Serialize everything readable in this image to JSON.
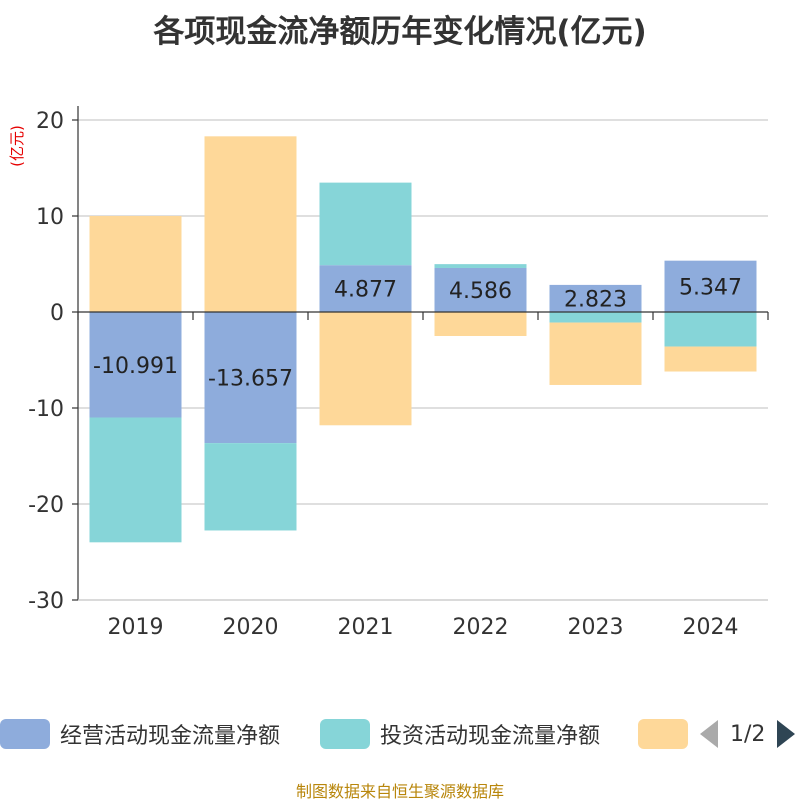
{
  "title": "各项现金流净额历年变化情况(亿元)",
  "source": "制图数据来自恒生聚源数据库",
  "pager": {
    "text": "1/2"
  },
  "colors": {
    "operating": "#8eacdc",
    "investing": "#86d5d8",
    "financing": "#fed899"
  },
  "chart_data": {
    "type": "bar",
    "stacked": true,
    "unit": "(亿元)",
    "categories": [
      "2019",
      "2020",
      "2021",
      "2022",
      "2023",
      "2024"
    ],
    "ylim": [
      -30,
      20
    ],
    "yticks": [
      20,
      10,
      0,
      -10,
      -20,
      -30
    ],
    "grid": true,
    "legend_position": "bottom",
    "series": [
      {
        "name": "经营活动现金流量净额",
        "color": "#8eacdc",
        "values": [
          -10.991,
          -13.657,
          4.877,
          4.586,
          2.823,
          5.347
        ],
        "show_labels": true
      },
      {
        "name": "投资活动现金流量净额",
        "color": "#86d5d8",
        "values": [
          -13.0,
          -9.1,
          8.6,
          0.4,
          -1.1,
          -3.6
        ],
        "show_labels": false
      },
      {
        "name": "",
        "color": "#fed899",
        "values": [
          10.0,
          18.3,
          -11.8,
          -2.5,
          -6.5,
          -2.6
        ],
        "show_labels": false
      }
    ]
  }
}
